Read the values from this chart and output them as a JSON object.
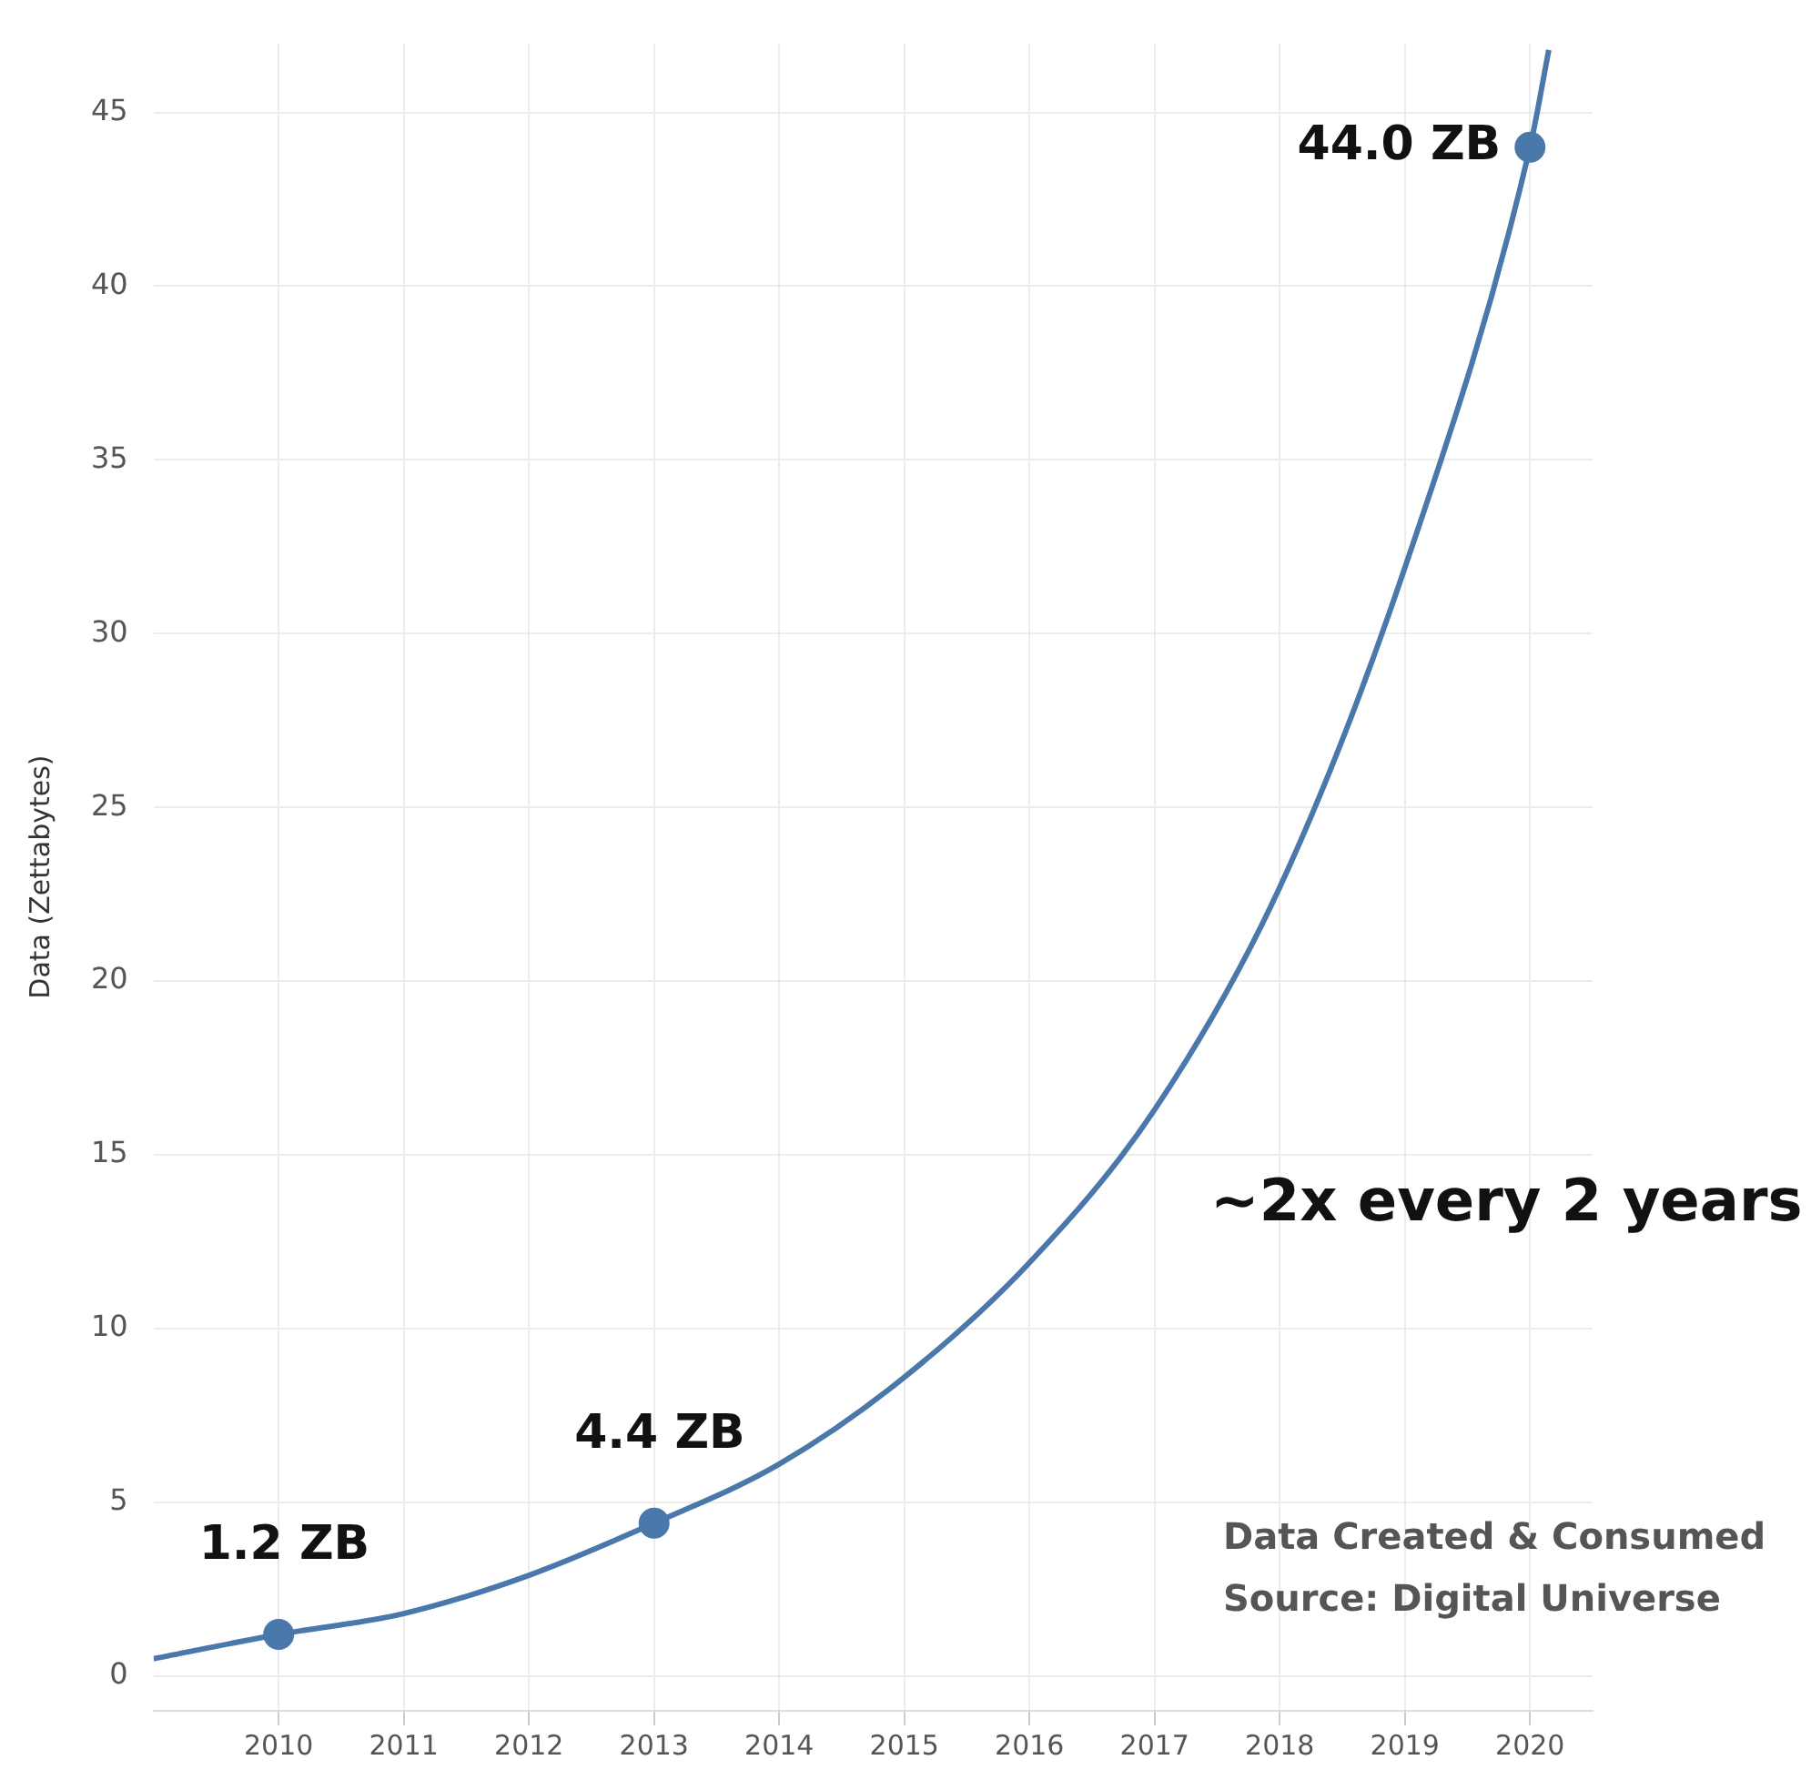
{
  "chart_data": {
    "type": "line",
    "ylabel": "Data (Zettabytes)",
    "xlim": [
      2009,
      2020.5
    ],
    "xticks": [
      2010,
      2011,
      2012,
      2013,
      2014,
      2015,
      2016,
      2017,
      2018,
      2019,
      2020
    ],
    "ylim": [
      -1,
      47
    ],
    "yticks": [
      0,
      5,
      10,
      15,
      20,
      25,
      30,
      35,
      40,
      45
    ],
    "grid": true,
    "legend": false,
    "series": [
      {
        "type": "line",
        "color": "#4a78aa",
        "marker": "none",
        "x": [
          2009,
          2010,
          2011,
          2012,
          2013,
          2014,
          2015,
          2016,
          2017,
          2018,
          2019,
          2020,
          2020.15
        ],
        "values": [
          0.5,
          1.2,
          1.8,
          2.9,
          4.4,
          6.1,
          8.6,
          11.9,
          16.3,
          22.7,
          31.9,
          44,
          46.8
        ]
      },
      {
        "type": "scatter",
        "color": "#4a78aa",
        "marker": "circle",
        "x": [
          2010,
          2013,
          2020
        ],
        "values": [
          1.2,
          4.4,
          44
        ],
        "value_labels": [
          "1.2 ZB",
          "4.4 ZB",
          "44.0 ZB"
        ]
      }
    ],
    "annotations": [
      "~2x every 2 years",
      "Data Created & Consumed",
      "Source: Digital Universe"
    ]
  }
}
